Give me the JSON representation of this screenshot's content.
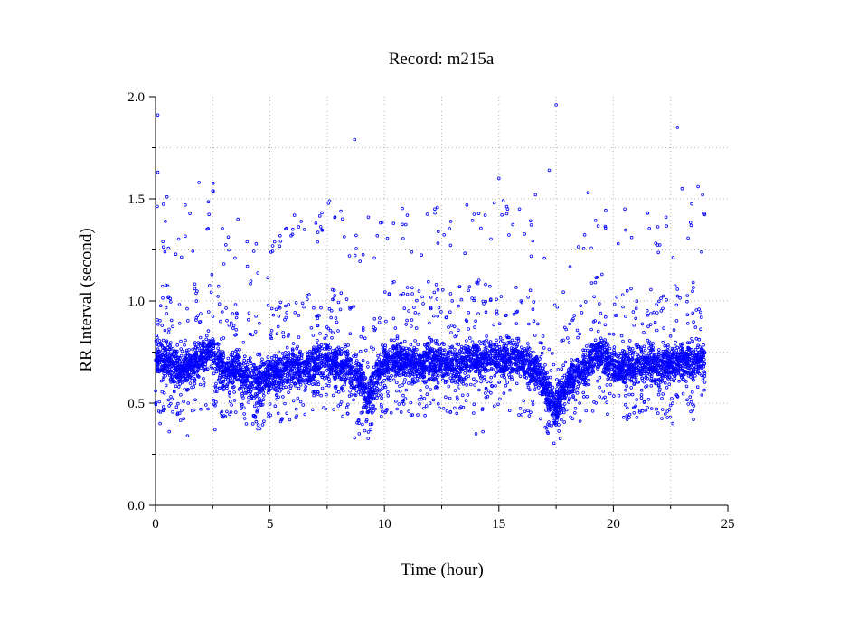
{
  "chart_data": {
    "type": "scatter",
    "title": "Record:  m215a",
    "xlabel": "Time (hour)",
    "ylabel": "RR Interval (second)",
    "xlim": [
      0,
      25
    ],
    "ylim": [
      0,
      2.0
    ],
    "x_ticks": [
      "0",
      "5",
      "10",
      "15",
      "20",
      "25"
    ],
    "y_ticks": [
      "0.0",
      "0.5",
      "1.0",
      "1.5",
      "2.0"
    ],
    "grid": true,
    "marker_color": "#0000ff",
    "baseline_profile": [
      [
        0.0,
        0.72
      ],
      [
        0.5,
        0.7
      ],
      [
        1.0,
        0.66
      ],
      [
        1.5,
        0.68
      ],
      [
        2.0,
        0.73
      ],
      [
        2.5,
        0.77
      ],
      [
        3.0,
        0.64
      ],
      [
        3.5,
        0.67
      ],
      [
        4.0,
        0.62
      ],
      [
        4.5,
        0.6
      ],
      [
        5.0,
        0.64
      ],
      [
        5.5,
        0.66
      ],
      [
        6.0,
        0.68
      ],
      [
        6.5,
        0.66
      ],
      [
        7.0,
        0.69
      ],
      [
        7.5,
        0.71
      ],
      [
        8.0,
        0.69
      ],
      [
        8.5,
        0.67
      ],
      [
        9.0,
        0.62
      ],
      [
        9.3,
        0.52
      ],
      [
        9.6,
        0.62
      ],
      [
        10.0,
        0.7
      ],
      [
        10.5,
        0.72
      ],
      [
        11.0,
        0.7
      ],
      [
        11.5,
        0.69
      ],
      [
        12.0,
        0.71
      ],
      [
        12.5,
        0.7
      ],
      [
        13.0,
        0.68
      ],
      [
        13.5,
        0.7
      ],
      [
        14.0,
        0.72
      ],
      [
        14.5,
        0.73
      ],
      [
        15.0,
        0.71
      ],
      [
        15.5,
        0.72
      ],
      [
        16.0,
        0.71
      ],
      [
        16.5,
        0.68
      ],
      [
        17.0,
        0.58
      ],
      [
        17.4,
        0.47
      ],
      [
        17.8,
        0.55
      ],
      [
        18.2,
        0.62
      ],
      [
        18.6,
        0.66
      ],
      [
        19.0,
        0.71
      ],
      [
        19.4,
        0.74
      ],
      [
        19.8,
        0.7
      ],
      [
        20.2,
        0.67
      ],
      [
        20.6,
        0.68
      ],
      [
        21.0,
        0.69
      ],
      [
        21.5,
        0.7
      ],
      [
        22.0,
        0.68
      ],
      [
        22.5,
        0.69
      ],
      [
        23.0,
        0.7
      ],
      [
        23.5,
        0.71
      ],
      [
        24.0,
        0.7
      ]
    ],
    "outliers": [
      [
        0.1,
        1.91
      ],
      [
        0.1,
        1.63
      ],
      [
        0.5,
        1.51
      ],
      [
        1.3,
        1.47
      ],
      [
        1.9,
        1.58
      ],
      [
        2.5,
        1.54
      ],
      [
        3.6,
        1.4
      ],
      [
        8.7,
        1.79
      ],
      [
        17.5,
        1.96
      ],
      [
        17.2,
        1.64
      ],
      [
        22.8,
        1.85
      ],
      [
        23.7,
        1.56
      ],
      [
        23.0,
        1.55
      ],
      [
        23.9,
        1.52
      ],
      [
        15.0,
        1.6
      ],
      [
        16.6,
        1.52
      ],
      [
        7.6,
        1.49
      ],
      [
        11.0,
        1.42
      ],
      [
        12.2,
        1.45
      ],
      [
        13.6,
        1.47
      ],
      [
        14.8,
        1.48
      ],
      [
        15.9,
        1.45
      ],
      [
        18.9,
        1.53
      ],
      [
        20.5,
        1.45
      ],
      [
        21.5,
        1.43
      ],
      [
        22.3,
        1.41
      ],
      [
        23.4,
        1.37
      ],
      [
        3.2,
        1.25
      ],
      [
        4.4,
        1.28
      ],
      [
        5.2,
        1.29
      ],
      [
        6.5,
        1.35
      ],
      [
        8.1,
        1.44
      ],
      [
        9.3,
        1.41
      ],
      [
        10.4,
        1.38
      ],
      [
        12.9,
        1.39
      ],
      [
        14.4,
        1.42
      ],
      [
        0.2,
        0.4
      ],
      [
        0.6,
        0.36
      ],
      [
        1.4,
        0.34
      ],
      [
        2.6,
        0.37
      ],
      [
        8.7,
        0.33
      ],
      [
        8.9,
        0.35
      ],
      [
        14.0,
        0.35
      ],
      [
        14.3,
        0.36
      ],
      [
        17.3,
        0.39
      ],
      [
        20.6,
        0.42
      ],
      [
        22.6,
        0.4
      ],
      [
        23.5,
        0.42
      ]
    ]
  }
}
